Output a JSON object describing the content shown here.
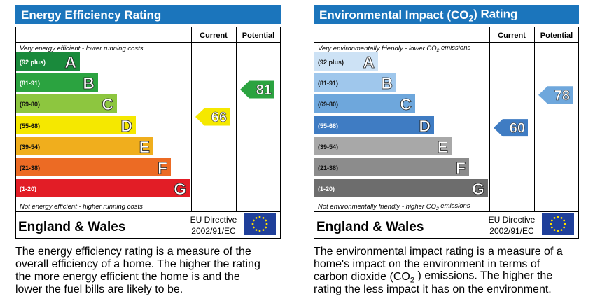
{
  "panels": [
    {
      "title": "Energy Efficiency Rating",
      "headers": [
        "Current",
        "Potential"
      ],
      "top_caption": "Very energy efficient - lower running costs",
      "bottom_caption": "Not energy efficient - higher running costs",
      "bands": [
        {
          "range": "(92 plus)",
          "letter": "A",
          "color": "#1a8a3c"
        },
        {
          "range": "(81-91)",
          "letter": "B",
          "color": "#2ba340"
        },
        {
          "range": "(69-80)",
          "letter": "C",
          "color": "#8dc63f"
        },
        {
          "range": "(55-68)",
          "letter": "D",
          "color": "#f5e800"
        },
        {
          "range": "(39-54)",
          "letter": "E",
          "color": "#f0ae1d"
        },
        {
          "range": "(21-38)",
          "letter": "F",
          "color": "#ec6b24"
        },
        {
          "range": "(1-20)",
          "letter": "G",
          "color": "#e21d26"
        }
      ],
      "current": 66,
      "potential": 81,
      "region": "England & Wales",
      "directive": [
        "EU Directive",
        "2002/91/EC"
      ],
      "description": [
        "The energy efficiency rating is a measure of the",
        "overall efficiency of a home. The higher the rating",
        "the more energy efficient the home is and the",
        "lower the fuel bills are likely to be."
      ]
    },
    {
      "title": [
        "Environmental Impact (CO",
        "2",
        ") Rating"
      ],
      "headers": [
        "Current",
        "Potential"
      ],
      "top_caption": [
        "Very environmentally friendly - lower CO",
        "2",
        " emissions"
      ],
      "bottom_caption": [
        "Not environmentally friendly - higher CO",
        "2",
        " emissions"
      ],
      "bands": [
        {
          "range": "(92 plus)",
          "letter": "A",
          "color": "#cde2f5"
        },
        {
          "range": "(81-91)",
          "letter": "B",
          "color": "#9fc7ec"
        },
        {
          "range": "(69-80)",
          "letter": "C",
          "color": "#6ea7dc"
        },
        {
          "range": "(55-68)",
          "letter": "D",
          "color": "#3f7cc3"
        },
        {
          "range": "(39-54)",
          "letter": "E",
          "color": "#a8a8a8"
        },
        {
          "range": "(21-38)",
          "letter": "F",
          "color": "#8c8c8c"
        },
        {
          "range": "(1-20)",
          "letter": "G",
          "color": "#6d6d6d"
        }
      ],
      "current": 60,
      "potential": 78,
      "region": "England & Wales",
      "directive": [
        "EU Directive",
        "2002/91/EC"
      ],
      "description": [
        "The environmental impact rating is a measure of a",
        "home's impact on the environment in terms of",
        [
          "carbon dioxide (CO",
          "2",
          " ) emissions. The higher the"
        ],
        "rating the less impact it has on the environment."
      ]
    }
  ]
}
